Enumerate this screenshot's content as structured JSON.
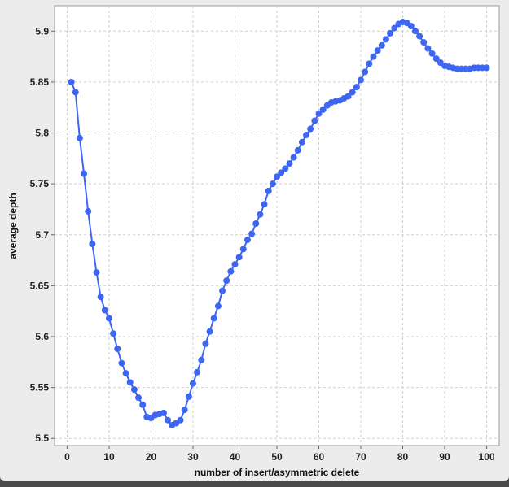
{
  "chart_data": {
    "type": "line",
    "title": "",
    "xlabel": "number of insert/asymmetric delete",
    "ylabel": "average depth",
    "xlim": [
      -3,
      103
    ],
    "ylim": [
      5.493,
      5.925
    ],
    "xticks": [
      0,
      10,
      20,
      30,
      40,
      50,
      60,
      70,
      80,
      90,
      100
    ],
    "yticks": [
      5.5,
      5.55,
      5.6,
      5.65,
      5.7,
      5.75,
      5.8,
      5.85,
      5.9
    ],
    "grid": true,
    "legend": "none",
    "series": [
      {
        "color": "#3d66f2",
        "marker": "circle",
        "x": [
          1,
          2,
          3,
          4,
          5,
          6,
          7,
          8,
          9,
          10,
          11,
          12,
          13,
          14,
          15,
          16,
          17,
          18,
          19,
          20,
          21,
          22,
          23,
          24,
          25,
          26,
          27,
          28,
          29,
          30,
          31,
          32,
          33,
          34,
          35,
          36,
          37,
          38,
          39,
          40,
          41,
          42,
          43,
          44,
          45,
          46,
          47,
          48,
          49,
          50,
          51,
          52,
          53,
          54,
          55,
          56,
          57,
          58,
          59,
          60,
          61,
          62,
          63,
          64,
          65,
          66,
          67,
          68,
          69,
          70,
          71,
          72,
          73,
          74,
          75,
          76,
          77,
          78,
          79,
          80,
          81,
          82,
          83,
          84,
          85,
          86,
          87,
          88,
          89,
          90,
          91,
          92,
          93,
          94,
          95,
          96,
          97,
          98,
          99,
          100
        ],
        "y": [
          5.85,
          5.84,
          5.795,
          5.76,
          5.723,
          5.691,
          5.663,
          5.639,
          5.626,
          5.618,
          5.603,
          5.588,
          5.574,
          5.564,
          5.555,
          5.548,
          5.54,
          5.533,
          5.521,
          5.52,
          5.523,
          5.524,
          5.525,
          5.518,
          5.513,
          5.515,
          5.518,
          5.528,
          5.541,
          5.554,
          5.565,
          5.577,
          5.593,
          5.605,
          5.618,
          5.63,
          5.645,
          5.655,
          5.664,
          5.671,
          5.678,
          5.686,
          5.695,
          5.701,
          5.711,
          5.72,
          5.73,
          5.743,
          5.75,
          5.757,
          5.761,
          5.765,
          5.77,
          5.776,
          5.783,
          5.791,
          5.798,
          5.804,
          5.812,
          5.819,
          5.823,
          5.827,
          5.83,
          5.831,
          5.832,
          5.834,
          5.836,
          5.84,
          5.845,
          5.852,
          5.86,
          5.868,
          5.875,
          5.881,
          5.886,
          5.892,
          5.898,
          5.903,
          5.907,
          5.909,
          5.908,
          5.905,
          5.9,
          5.895,
          5.889,
          5.883,
          5.878,
          5.873,
          5.869,
          5.866,
          5.865,
          5.864,
          5.863,
          5.863,
          5.863,
          5.863,
          5.864,
          5.864,
          5.864,
          5.864
        ]
      }
    ]
  }
}
